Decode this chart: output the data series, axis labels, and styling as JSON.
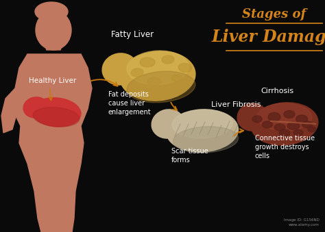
{
  "background_color": "#0a0a0a",
  "title_line1": "Stages of",
  "title_line2": "Liver Damage",
  "title_color": "#d4841a",
  "title_fontsize1": 13,
  "title_fontsize2": 17,
  "underline_color": "#d4841a",
  "text_color": "#ffffff",
  "label_fontsize": 7,
  "silhouette_color": "#c07860",
  "healthy_liver_color": "#cc3333",
  "fatty_liver_color": "#c8a040",
  "fibrosis_liver_color": "#c0b090",
  "cirrhosis_liver_color": "#7a3020",
  "arrow_color": "#c8780a",
  "labels": {
    "healthy": "Healthy Liver",
    "fatty": "Fatty Liver",
    "fat_desc": "Fat deposits\ncause liver\nenlargement",
    "fibrosis": "Liver Fibrosis",
    "scar": "Scar tissue\nforms",
    "cirrhosis": "Cirrhosis",
    "connective": "Connective tissue\ngrowth destroys\ncells"
  },
  "image_id": "Image ID: G156ND\nwww.alamy.com"
}
